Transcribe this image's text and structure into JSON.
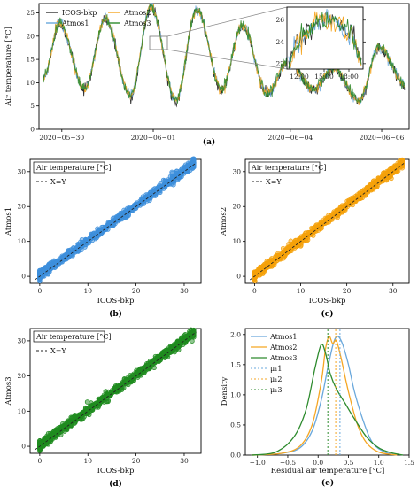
{
  "colors": {
    "icos": "#333333",
    "atmos1": "#6aa8dc",
    "atmos2": "#f5a623",
    "atmos3": "#2e8b2e",
    "scatter1": "#3d8fdc",
    "scatter2": "#f5a10a",
    "scatter3": "#1f8c1f"
  },
  "chart_data": [
    {
      "id": "a",
      "type": "line",
      "caption": "(a)",
      "ylabel": "Air temperature [°C]",
      "xlabel": "",
      "x_ticks": [
        "2020−05−30",
        "2020−06−01",
        "2020−06−04",
        "2020−06−06"
      ],
      "x_tick_days": [
        0.5,
        2.5,
        5.5,
        7.5
      ],
      "xlim_days": [
        0,
        8.1
      ],
      "y_ticks": [
        0,
        5,
        10,
        15,
        20,
        25
      ],
      "ylim": [
        0,
        27
      ],
      "legend": [
        "ICOS-bkp",
        "Atmos1",
        "Atmos2",
        "Atmos3"
      ],
      "series_shape": {
        "days": [
          0.1,
          0.45,
          1.0,
          1.45,
          2.0,
          2.45,
          3.0,
          3.45,
          4.0,
          4.45,
          5.0,
          5.45,
          6.0,
          6.45,
          7.0,
          7.45,
          8.0
        ],
        "temperature": [
          11.0,
          22.5,
          8.5,
          23.5,
          7.0,
          26.0,
          6.0,
          25.5,
          8.5,
          22.0,
          7.5,
          14.5,
          8.5,
          13.0,
          6.0,
          17.5,
          9.5
        ]
      },
      "inset": {
        "x_ticks": [
          "12:00",
          "15:00",
          "18:00"
        ],
        "y_ticks": [
          22,
          24,
          26
        ],
        "ylim": [
          21.5,
          27.2
        ]
      }
    },
    {
      "id": "b",
      "type": "scatter",
      "caption": "(b)",
      "title": "Air temperature [°C]",
      "legend": [
        "X=Y"
      ],
      "xlabel": "ICOS-bkp",
      "ylabel": "Atmos1",
      "x_ticks": [
        0,
        10,
        20,
        30
      ],
      "y_ticks": [
        0,
        10,
        20,
        30
      ],
      "xlim": [
        -2,
        33.5
      ],
      "ylim": [
        -2,
        33.5
      ]
    },
    {
      "id": "c",
      "type": "scatter",
      "caption": "(c)",
      "title": "Air temperature [°C]",
      "legend": [
        "X=Y"
      ],
      "xlabel": "ICOS-bkp",
      "ylabel": "Atmos2",
      "x_ticks": [
        0,
        10,
        20,
        30
      ],
      "y_ticks": [
        0,
        10,
        20,
        30
      ],
      "xlim": [
        -2,
        33.5
      ],
      "ylim": [
        -2,
        33.5
      ]
    },
    {
      "id": "d",
      "type": "scatter",
      "caption": "(d)",
      "title": "Air temperature [°C]",
      "legend": [
        "X=Y"
      ],
      "xlabel": "ICOS-bkp",
      "ylabel": "Atmos3",
      "x_ticks": [
        0,
        10,
        20,
        30
      ],
      "y_ticks": [
        0,
        10,
        20,
        30
      ],
      "xlim": [
        -2,
        33.5
      ],
      "ylim": [
        -2,
        33.5
      ]
    },
    {
      "id": "e",
      "type": "line",
      "caption": "(e)",
      "xlabel": "Residual air temperature [°C]",
      "ylabel": "Density",
      "x_ticks": [
        "−1.0",
        "−0.5",
        "0.0",
        "0.5",
        "1.0",
        "1.5"
      ],
      "x_tick_values": [
        -1.0,
        -0.5,
        0.0,
        0.5,
        1.0,
        1.5
      ],
      "y_ticks": [
        "0.0",
        "0.5",
        "1.0",
        "1.5",
        "2.0"
      ],
      "y_tick_values": [
        0,
        0.5,
        1.0,
        1.5,
        2.0
      ],
      "xlim": [
        -1.2,
        1.5
      ],
      "ylim": [
        0,
        2.1
      ],
      "legend": [
        "Atmos1",
        "Atmos2",
        "Atmos3",
        "μ₁1",
        "μ₁2",
        "μ₁3"
      ],
      "means": [
        0.36,
        0.29,
        0.16
      ],
      "series": [
        {
          "name": "Atmos1",
          "x": [
            -1.1,
            -0.6,
            -0.3,
            -0.1,
            0.05,
            0.15,
            0.25,
            0.32,
            0.4,
            0.5,
            0.6,
            0.75,
            0.9,
            1.1,
            1.3
          ],
          "y": [
            0.0,
            0.03,
            0.12,
            0.4,
            0.9,
            1.4,
            1.85,
            1.97,
            1.85,
            1.5,
            1.05,
            0.55,
            0.2,
            0.05,
            0.0
          ]
        },
        {
          "name": "Atmos2",
          "x": [
            -1.1,
            -0.6,
            -0.3,
            -0.1,
            0.05,
            0.12,
            0.18,
            0.24,
            0.3,
            0.38,
            0.5,
            0.65,
            0.8,
            1.0,
            1.3
          ],
          "y": [
            0.0,
            0.03,
            0.15,
            0.5,
            1.2,
            1.75,
            1.97,
            1.85,
            1.9,
            1.6,
            1.05,
            0.5,
            0.2,
            0.05,
            0.0
          ]
        },
        {
          "name": "Atmos3",
          "x": [
            -1.1,
            -0.7,
            -0.4,
            -0.2,
            -0.05,
            0.05,
            0.12,
            0.2,
            0.3,
            0.45,
            0.6,
            0.8,
            1.0,
            1.2,
            1.4
          ],
          "y": [
            0.0,
            0.05,
            0.3,
            0.75,
            1.45,
            1.83,
            1.7,
            1.35,
            1.1,
            0.85,
            0.6,
            0.3,
            0.12,
            0.04,
            0.0
          ]
        }
      ]
    }
  ]
}
